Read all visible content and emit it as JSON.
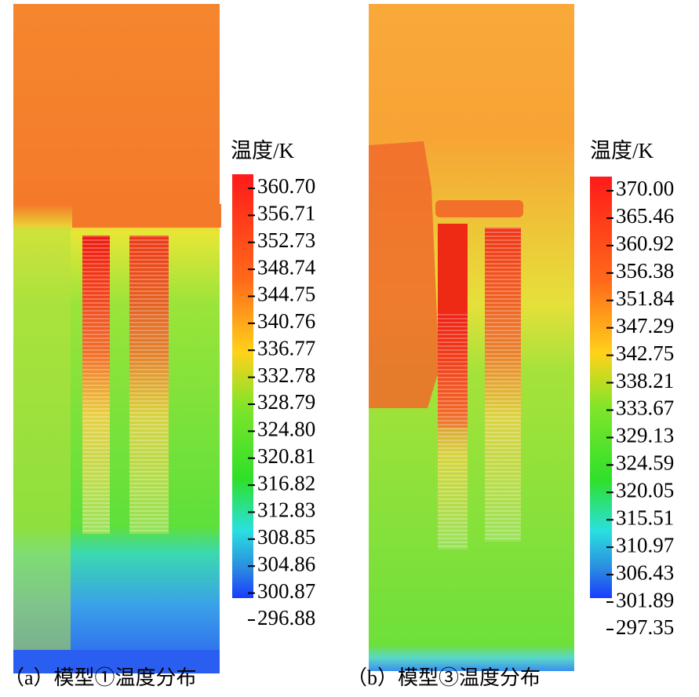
{
  "panels": [
    {
      "caption": "（a）模型①温度分布",
      "colorbar": {
        "title": "温度/K",
        "ticks": [
          "360.70",
          "356.71",
          "352.73",
          "348.74",
          "344.75",
          "340.76",
          "336.77",
          "332.78",
          "328.79",
          "324.80",
          "320.81",
          "316.82",
          "312.83",
          "308.85",
          "304.86",
          "300.87",
          "296.88"
        ]
      }
    },
    {
      "caption": "（b）模型③温度分布",
      "colorbar": {
        "title": "温度/K",
        "ticks": [
          "370.00",
          "365.46",
          "360.92",
          "356.38",
          "351.84",
          "347.29",
          "342.75",
          "338.21",
          "333.67",
          "329.13",
          "324.59",
          "320.05",
          "315.51",
          "310.97",
          "306.43",
          "301.89",
          "297.35"
        ]
      }
    }
  ]
}
